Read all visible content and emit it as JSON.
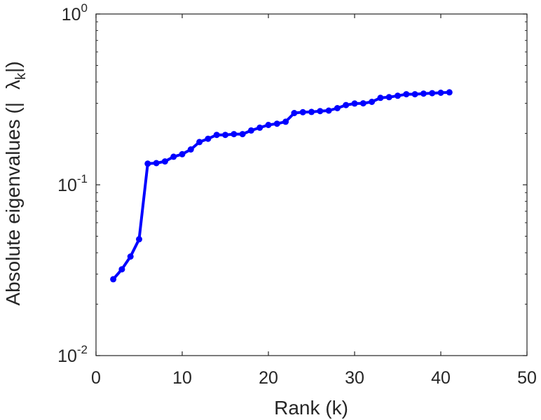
{
  "chart_data": {
    "type": "line",
    "xlabel": "Rank (k)",
    "ylabel_main": "Absolute eigenvalues (|",
    "ylabel_symbol": "λ",
    "ylabel_subscript": "k",
    "ylabel_end": "|)",
    "xlim": [
      0,
      50
    ],
    "ylim": [
      0.01,
      1
    ],
    "yscale": "log",
    "grid": false,
    "x_ticks": [
      {
        "value": 0,
        "label": "0"
      },
      {
        "value": 10,
        "label": "10"
      },
      {
        "value": 20,
        "label": "20"
      },
      {
        "value": 30,
        "label": "30"
      },
      {
        "value": 40,
        "label": "40"
      },
      {
        "value": 50,
        "label": "50"
      }
    ],
    "y_ticks": [
      {
        "value": 0.01,
        "base": "10",
        "exp": "-2"
      },
      {
        "value": 0.1,
        "base": "10",
        "exp": "-1"
      },
      {
        "value": 1,
        "base": "10",
        "exp": "0"
      }
    ],
    "color": "#0000ff",
    "series": [
      {
        "x": [
          2,
          3,
          4,
          5,
          6,
          7,
          8,
          9,
          10,
          11,
          12,
          13,
          14,
          15,
          16,
          17,
          18,
          19,
          20,
          21,
          22,
          23,
          24,
          25,
          26,
          27,
          28,
          29,
          30,
          31,
          32,
          33,
          34,
          35,
          36,
          37,
          38,
          39,
          40,
          41
        ],
        "y": [
          0.028,
          0.032,
          0.038,
          0.048,
          0.133,
          0.134,
          0.137,
          0.146,
          0.151,
          0.161,
          0.178,
          0.186,
          0.196,
          0.196,
          0.198,
          0.198,
          0.208,
          0.216,
          0.224,
          0.228,
          0.234,
          0.263,
          0.266,
          0.267,
          0.27,
          0.272,
          0.281,
          0.293,
          0.299,
          0.3,
          0.306,
          0.323,
          0.326,
          0.332,
          0.339,
          0.339,
          0.342,
          0.344,
          0.346,
          0.348
        ]
      }
    ]
  }
}
